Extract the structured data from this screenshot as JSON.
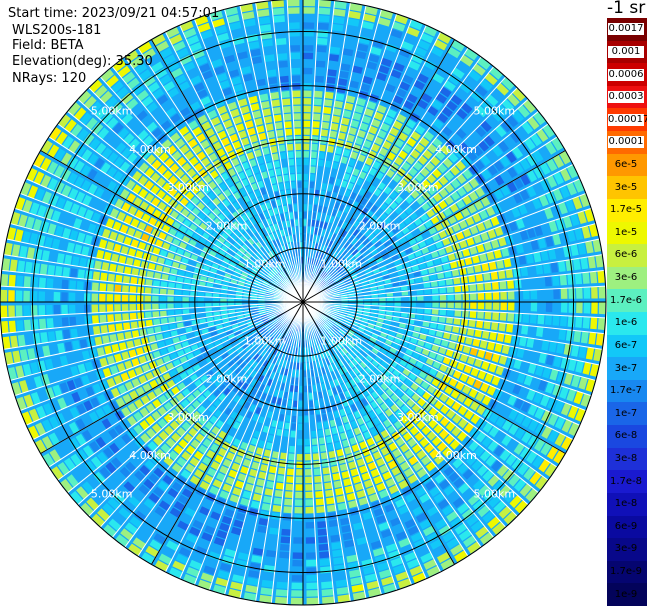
{
  "header": {
    "start_time": "Start time: 2023/09/21 04:57:01",
    "instrument": "WLS200s-181",
    "field": "Field: BETA",
    "elevation": "Elevation(deg): 35.30",
    "nrays": "NRays: 120"
  },
  "colorbar": {
    "unit": "-1 sr",
    "labels": [
      "0.0017",
      "0.001",
      "0.0006",
      "0.0003",
      "0.00017",
      "0.0001",
      "6e-5",
      "3e-5",
      "1.7e-5",
      "1e-5",
      "6e-6",
      "3e-6",
      "1.7e-6",
      "1e-6",
      "6e-7",
      "3e-7",
      "1.7e-7",
      "1e-7",
      "6e-8",
      "3e-8",
      "1.7e-8",
      "1e-8",
      "6e-9",
      "3e-9",
      "1.7e-9",
      "1e-9"
    ],
    "colors": [
      "#7a0000",
      "#a80000",
      "#cc0000",
      "#ee1010",
      "#ff3a00",
      "#ff6a00",
      "#ff9800",
      "#ffc400",
      "#ffee00",
      "#eef800",
      "#c8f040",
      "#9ef080",
      "#5cf0c0",
      "#2ae8ee",
      "#12c8f8",
      "#18a8f8",
      "#1888f0",
      "#1a66e8",
      "#1a48e0",
      "#1e30d8",
      "#1a1ad0",
      "#1010b8",
      "#0a0aa0",
      "#08088a",
      "#050570",
      "#03035a"
    ]
  },
  "chart_data": {
    "type": "ppi_polar",
    "field": "BETA",
    "elevation_deg": 35.3,
    "n_rays": 120,
    "range_rings_km": [
      1.0,
      2.0,
      3.0,
      4.0,
      5.0
    ],
    "range_ring_labels": [
      "1.00km",
      "2.00km",
      "3.00km",
      "4.00km",
      "5.00km"
    ],
    "max_range_km": 5.6,
    "spoke_step_deg": 30,
    "radial_profile": {
      "range_km": [
        0.2,
        0.6,
        1.0,
        1.5,
        2.0,
        2.5,
        3.0,
        3.3,
        3.8,
        4.3,
        4.8,
        5.3,
        5.6
      ],
      "typical_beta_sr": [
        "3e-8",
        "6e-8",
        "1e-7",
        "1e-7",
        "1.7e-7",
        "3e-7",
        "6e-7",
        "1.7e-6",
        "6e-7",
        "1e-7",
        "6e-8",
        "3e-7",
        "3e-6"
      ]
    }
  }
}
